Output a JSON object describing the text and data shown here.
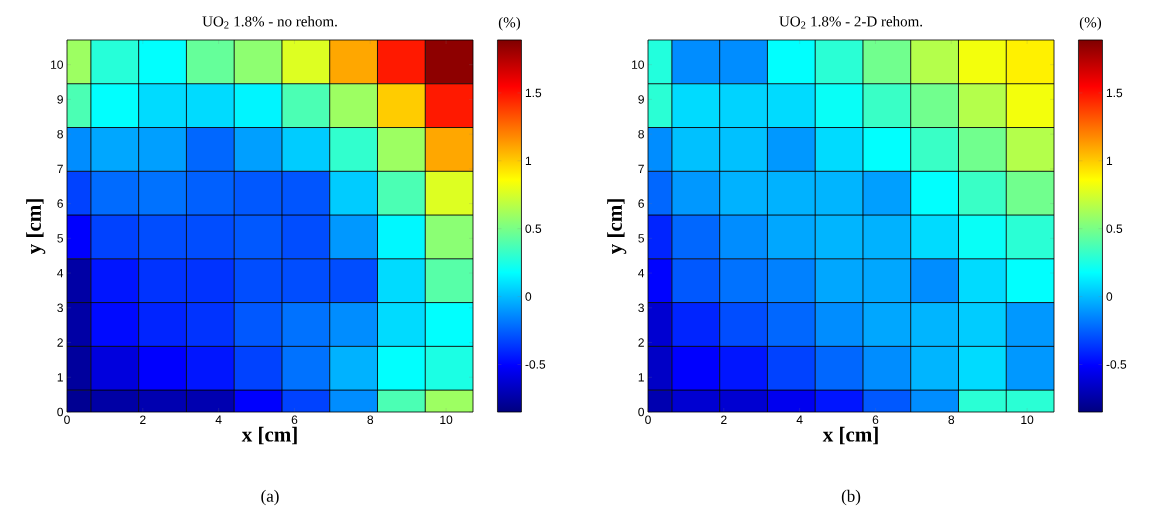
{
  "chart_data": [
    {
      "type": "heatmap",
      "title": "UO$_{2}$ 1.8% - no rehom.",
      "xlabel": "x [cm]",
      "ylabel": "y [cm]",
      "clabel": "(%)",
      "annotations": [
        "(a)"
      ],
      "x": [
        0.315,
        1.26,
        2.52,
        3.78,
        5.04,
        6.3,
        7.56,
        8.82,
        10.08
      ],
      "y": [
        10.08,
        8.82,
        7.56,
        6.3,
        5.04,
        3.78,
        2.52,
        1.26,
        0.315
      ],
      "xlim": [
        0,
        10.71
      ],
      "ylim": [
        0,
        10.71
      ],
      "xticks": [
        0,
        2,
        4,
        6,
        8,
        10
      ],
      "yticks": [
        0,
        1,
        2,
        3,
        4,
        5,
        6,
        7,
        8,
        9,
        10
      ],
      "clim": [
        -0.85,
        1.89
      ],
      "cticks": [
        -0.5,
        0,
        0.5,
        1,
        1.5
      ],
      "cells": [
        [
          0.6,
          0.28,
          0.18,
          0.45,
          0.56,
          0.77,
          1.1,
          1.48,
          1.85
        ],
        [
          0.38,
          0.18,
          0.08,
          0.08,
          0.15,
          0.38,
          0.6,
          1.0,
          1.48
        ],
        [
          -0.13,
          -0.06,
          -0.08,
          -0.23,
          -0.08,
          0.04,
          0.31,
          0.6,
          1.1
        ],
        [
          -0.33,
          -0.22,
          -0.2,
          -0.25,
          -0.27,
          -0.28,
          0.04,
          0.38,
          0.77
        ],
        [
          -0.51,
          -0.33,
          -0.3,
          -0.3,
          -0.27,
          -0.3,
          -0.1,
          0.16,
          0.55
        ],
        [
          -0.75,
          -0.45,
          -0.37,
          -0.37,
          -0.3,
          -0.3,
          -0.3,
          0.08,
          0.41
        ],
        [
          -0.75,
          -0.48,
          -0.41,
          -0.37,
          -0.27,
          -0.2,
          -0.13,
          0.08,
          0.18
        ],
        [
          -0.77,
          -0.6,
          -0.51,
          -0.45,
          -0.33,
          -0.2,
          -0.03,
          0.18,
          0.25
        ],
        [
          -0.8,
          -0.75,
          -0.72,
          -0.72,
          -0.51,
          -0.33,
          -0.13,
          0.38,
          0.6
        ]
      ]
    },
    {
      "type": "heatmap",
      "title": "UO$_{2}$ 1.8% - 2-D rehom.",
      "xlabel": "x [cm]",
      "ylabel": "y [cm]",
      "clabel": "(%)",
      "annotations": [
        "(b)"
      ],
      "x": [
        0.315,
        1.26,
        2.52,
        3.78,
        5.04,
        6.3,
        7.56,
        8.82,
        10.08
      ],
      "y": [
        10.08,
        8.82,
        7.56,
        6.3,
        5.04,
        3.78,
        2.52,
        1.26,
        0.315
      ],
      "xlim": [
        0,
        10.71
      ],
      "ylim": [
        0,
        10.71
      ],
      "xticks": [
        0,
        2,
        4,
        6,
        8,
        10
      ],
      "yticks": [
        0,
        1,
        2,
        3,
        4,
        5,
        6,
        7,
        8,
        9,
        10
      ],
      "clim": [
        -0.85,
        1.89
      ],
      "cticks": [
        -0.5,
        0,
        0.5,
        1,
        1.5
      ],
      "cells": [
        [
          0.27,
          -0.13,
          -0.13,
          0.18,
          0.29,
          0.48,
          0.66,
          0.83,
          0.9
        ],
        [
          0.29,
          0.08,
          0.06,
          0.08,
          0.2,
          0.33,
          0.48,
          0.66,
          0.83
        ],
        [
          -0.13,
          0.01,
          0.01,
          -0.1,
          0.08,
          0.18,
          0.33,
          0.48,
          0.66
        ],
        [
          -0.23,
          -0.1,
          -0.03,
          -0.03,
          -0.02,
          -0.08,
          0.18,
          0.33,
          0.48
        ],
        [
          -0.41,
          -0.23,
          -0.13,
          -0.06,
          -0.02,
          -0.03,
          0.08,
          0.2,
          0.29
        ],
        [
          -0.5,
          -0.27,
          -0.2,
          -0.16,
          -0.06,
          -0.06,
          -0.13,
          0.08,
          0.18
        ],
        [
          -0.63,
          -0.41,
          -0.3,
          -0.23,
          -0.13,
          -0.06,
          -0.02,
          0.04,
          -0.1
        ],
        [
          -0.66,
          -0.51,
          -0.45,
          -0.33,
          -0.23,
          -0.13,
          -0.02,
          0.08,
          -0.1
        ],
        [
          -0.72,
          -0.63,
          -0.63,
          -0.55,
          -0.45,
          -0.27,
          -0.13,
          0.29,
          0.29
        ]
      ]
    }
  ]
}
